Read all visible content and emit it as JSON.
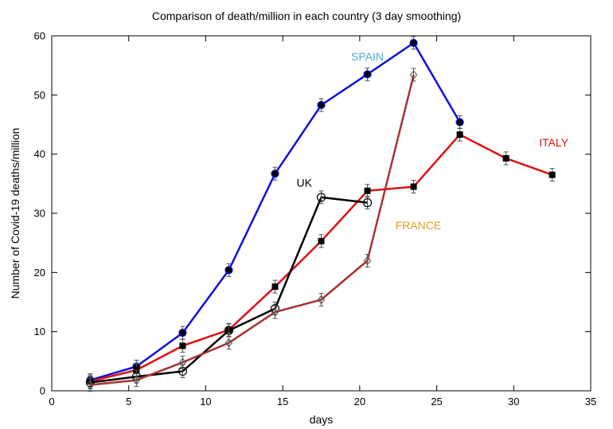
{
  "chart_data": {
    "type": "line",
    "title": "Comparison of death/million in each country (3 day smoothing)",
    "xlabel": "days",
    "ylabel": "Number of Covid-19 deaths/million",
    "xlim": [
      0,
      35
    ],
    "ylim": [
      0,
      60
    ],
    "xticks": [
      0,
      5,
      10,
      15,
      20,
      25,
      30,
      35
    ],
    "yticks": [
      0,
      10,
      20,
      30,
      40,
      50,
      60
    ],
    "grid": false,
    "series": [
      {
        "name": "SPAIN",
        "color": "#1010e0",
        "label_color": "#4aa8d8",
        "marker": "filled-circle",
        "x": [
          2.5,
          5.5,
          8.5,
          11.5,
          14.5,
          17.5,
          20.5,
          23.5,
          26.5
        ],
        "values": [
          1.8,
          4.1,
          9.8,
          20.4,
          36.7,
          48.3,
          53.5,
          58.8,
          45.4
        ]
      },
      {
        "name": "ITALY",
        "color": "#e01010",
        "label_color": "#e01010",
        "marker": "filled-square",
        "x": [
          2.5,
          5.5,
          8.5,
          11.5,
          14.5,
          17.5,
          20.5,
          23.5,
          26.5,
          29.5,
          32.5
        ],
        "values": [
          1.6,
          3.5,
          7.6,
          10.3,
          17.6,
          25.3,
          33.8,
          34.5,
          43.3,
          39.3,
          36.5
        ]
      },
      {
        "name": "UK",
        "color": "#000000",
        "label_color": "#000000",
        "marker": "open-circle",
        "x": [
          2.5,
          5.5,
          8.5,
          11.5,
          14.5,
          17.5,
          20.5
        ],
        "values": [
          1.4,
          2.4,
          3.3,
          10.2,
          13.9,
          32.7,
          31.8
        ]
      },
      {
        "name": "FRANCE",
        "color": "#a83232",
        "label_color": "#e0a020",
        "marker": "open-diamond",
        "x": [
          2.5,
          5.5,
          8.5,
          11.5,
          14.5,
          17.5,
          20.5,
          23.5
        ],
        "values": [
          1.0,
          1.8,
          4.8,
          8.1,
          13.3,
          15.4,
          22.0,
          53.4
        ]
      }
    ]
  }
}
